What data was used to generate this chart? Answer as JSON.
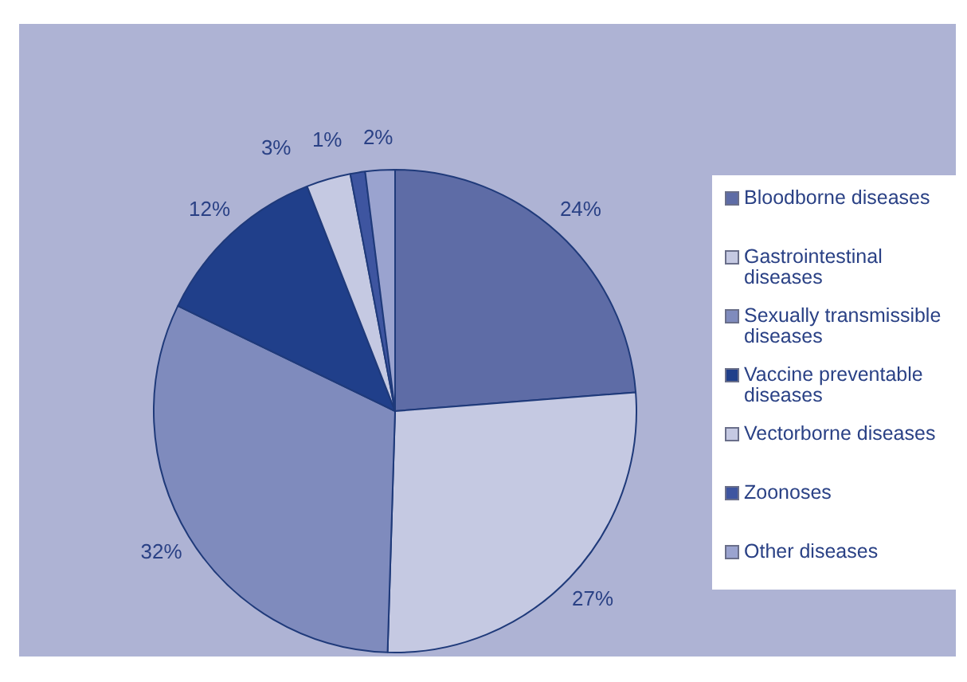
{
  "chart_data": {
    "type": "pie",
    "categories": [
      "Bloodborne diseases",
      "Gastrointestinal diseases",
      "Sexually transmissible diseases",
      "Vaccine preventable diseases",
      "Vectorborne diseases",
      "Zoonoses",
      "Other diseases"
    ],
    "values": [
      24,
      27,
      32,
      12,
      3,
      1,
      2
    ],
    "value_labels": [
      "24%",
      "27%",
      "32%",
      "12%",
      "3%",
      "1%",
      "2%"
    ],
    "colors": [
      "#5e6ca6",
      "#c5c9e2",
      "#7f8bbd",
      "#203f8a",
      "#c5c9e2",
      "#3e55a0",
      "#9aa3cf"
    ],
    "legend": "right"
  }
}
